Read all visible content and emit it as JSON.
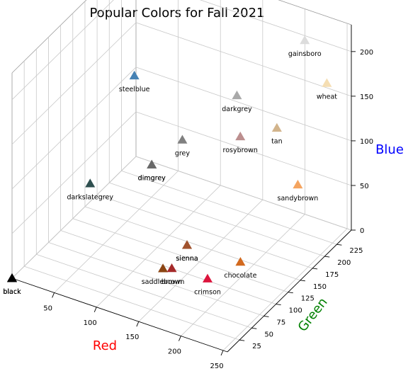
{
  "chart_data": {
    "type": "scatter3d",
    "title": "Popular Colors for Fall 2021",
    "xlabel": "Red",
    "ylabel": "Green",
    "zlabel": "Blue",
    "xlabel_color": "#ff0000",
    "ylabel_color": "#008000",
    "zlabel_color": "#0000ff",
    "xlim": [
      0,
      255
    ],
    "ylim": [
      0,
      255
    ],
    "zlim": [
      0,
      230
    ],
    "xticks": [
      50,
      100,
      150,
      200,
      250
    ],
    "yticks": [
      25,
      50,
      75,
      100,
      125,
      150,
      175,
      200,
      225
    ],
    "zticks": [
      0,
      50,
      100,
      150,
      200
    ],
    "grid": true,
    "marker": "triangle",
    "points": [
      {
        "label": "gainsboro",
        "x": 220,
        "y": 220,
        "z": 220,
        "color": "#dcdcdc"
      },
      {
        "label": "wheat",
        "x": 245,
        "y": 222,
        "z": 179,
        "color": "#f5deb3"
      },
      {
        "label": "tan",
        "x": 210,
        "y": 180,
        "z": 140,
        "color": "#d2b48c"
      },
      {
        "label": "darkgrey",
        "x": 169,
        "y": 169,
        "z": 169,
        "color": "#a9a9a9"
      },
      {
        "label": "steelblue",
        "x": 70,
        "y": 130,
        "z": 180,
        "color": "#4682b4"
      },
      {
        "label": "grey",
        "x": 128,
        "y": 128,
        "z": 128,
        "color": "#808080"
      },
      {
        "label": "rosybrown",
        "x": 188,
        "y": 143,
        "z": 143,
        "color": "#bc8f8f"
      },
      {
        "label": "sandybrown",
        "x": 244,
        "y": 164,
        "z": 96,
        "color": "#f4a460"
      },
      {
        "label": "dimgrey",
        "x": 105,
        "y": 105,
        "z": 105,
        "color": "#696969"
      },
      {
        "label": "dimgrey",
        "x": 105,
        "y": 105,
        "z": 105,
        "color": "#696969"
      },
      {
        "label": "sienna",
        "x": 160,
        "y": 82,
        "z": 45,
        "color": "#a0522d"
      },
      {
        "label": "darkslategrey",
        "x": 47,
        "y": 79,
        "z": 79,
        "color": "#2f4f4f"
      },
      {
        "label": "sienna",
        "x": 160,
        "y": 82,
        "z": 45,
        "color": "#a0522d"
      },
      {
        "label": "saddlebrown",
        "x": 139,
        "y": 69,
        "z": 19,
        "color": "#8b4513"
      },
      {
        "label": "chocolate",
        "x": 210,
        "y": 105,
        "z": 30,
        "color": "#d2691e"
      },
      {
        "label": "black",
        "x": 0,
        "y": 0,
        "z": 0,
        "color": "#000000"
      },
      {
        "label": "black",
        "x": 0,
        "y": 0,
        "z": 0,
        "color": "#000000"
      },
      {
        "label": "black",
        "x": 0,
        "y": 0,
        "z": 0,
        "color": "#000000"
      },
      {
        "label": "brown",
        "x": 165,
        "y": 42,
        "z": 42,
        "color": "#a52a2a"
      },
      {
        "label": "crimson",
        "x": 220,
        "y": 20,
        "z": 60,
        "color": "#dc143c"
      }
    ]
  }
}
